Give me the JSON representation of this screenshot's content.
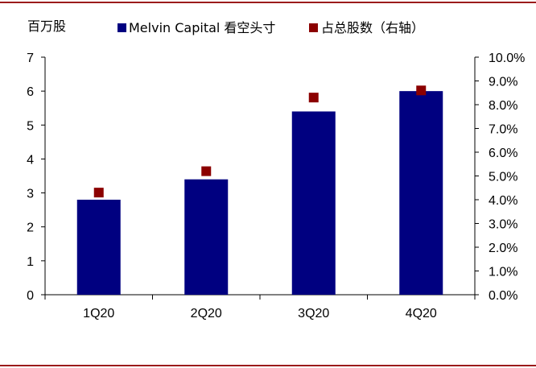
{
  "chart_data": {
    "type": "bar",
    "y_unit_label": "百万股",
    "categories": [
      "1Q20",
      "2Q20",
      "3Q20",
      "4Q20"
    ],
    "series": [
      {
        "name": "Melvin Capital 看空头寸",
        "type": "bar",
        "axis": "left",
        "color": "#000080",
        "values": [
          2.8,
          3.4,
          5.4,
          6.0
        ]
      },
      {
        "name": "占总股数（右轴）",
        "type": "scatter",
        "axis": "right",
        "color": "#8b0000",
        "values": [
          4.3,
          5.2,
          8.3,
          8.6
        ]
      }
    ],
    "ylim_left": [
      0,
      7
    ],
    "yticks_left": [
      "0",
      "1",
      "2",
      "3",
      "4",
      "5",
      "6",
      "7"
    ],
    "ylim_right": [
      0,
      10
    ],
    "yticks_right": [
      "0.0%",
      "1.0%",
      "2.0%",
      "3.0%",
      "4.0%",
      "5.0%",
      "6.0%",
      "7.0%",
      "8.0%",
      "9.0%",
      "10.0%"
    ],
    "grid": false,
    "legend_position": "top"
  }
}
